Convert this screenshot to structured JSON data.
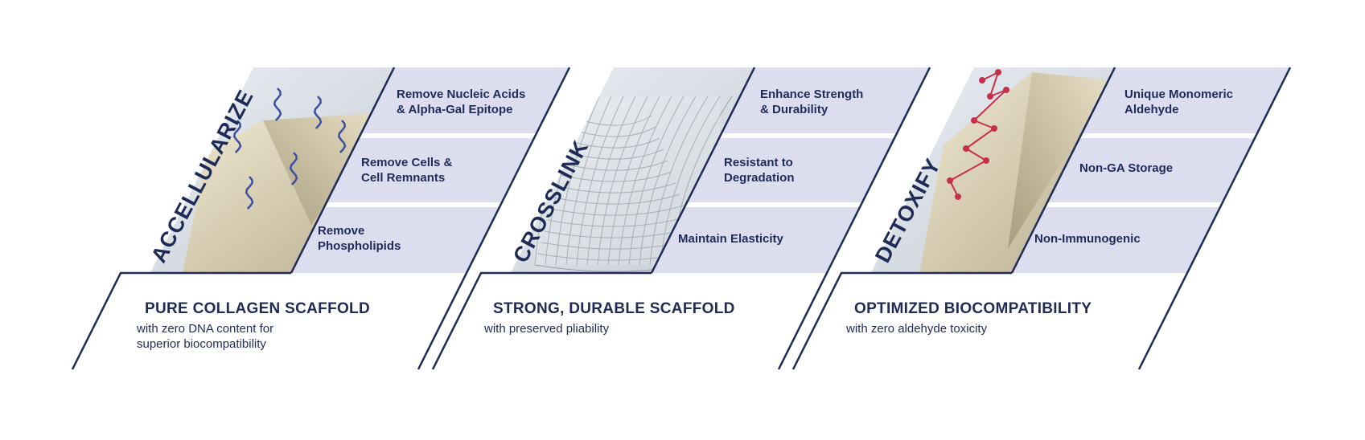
{
  "colors": {
    "navy": "#1f2b57",
    "panel": "#dcdef0",
    "cream": "#d8cfb5",
    "dna": "#3d4f9e",
    "molecule": "#c8304a"
  },
  "stages": [
    {
      "verb": "ACCELLULARIZE",
      "image_icon": "tissue-with-dna-strands-icon",
      "points": [
        "Remove Nucleic Acids\n& Alpha-Gal Epitope",
        "Remove Cells &\nCell Remnants",
        "Remove\nPhospholipids"
      ],
      "heading": "PURE COLLAGEN SCAFFOLD",
      "subtext": "with zero DNA content for\nsuperior biocompatibility"
    },
    {
      "verb": "CROSSLINK",
      "image_icon": "crosslinked-mesh-scaffold-icon",
      "points": [
        "Enhance Strength\n& Durability",
        "Resistant to\nDegradation",
        "Maintain Elasticity"
      ],
      "heading": "STRONG, DURABLE SCAFFOLD",
      "subtext": "with preserved pliability"
    },
    {
      "verb": "DETOXIFY",
      "image_icon": "tissue-with-molecules-icon",
      "points": [
        "Unique Monomeric\nAldehyde",
        "Non-GA Storage",
        "Non-Immunogenic"
      ],
      "heading": "OPTIMIZED BIOCOMPATIBILITY",
      "subtext": "with zero aldehyde toxicity"
    }
  ]
}
